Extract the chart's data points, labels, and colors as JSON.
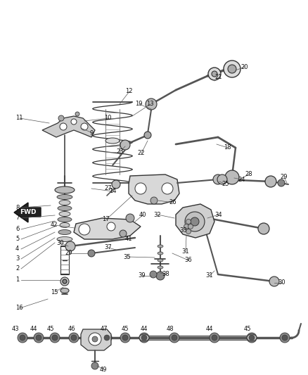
{
  "bg_color": "#ffffff",
  "fig_width": 4.38,
  "fig_height": 5.33,
  "dpi": 100,
  "lc": "#333333",
  "label_fs": 6.0,
  "callout_lw": 0.5,
  "part_lw": 1.0
}
